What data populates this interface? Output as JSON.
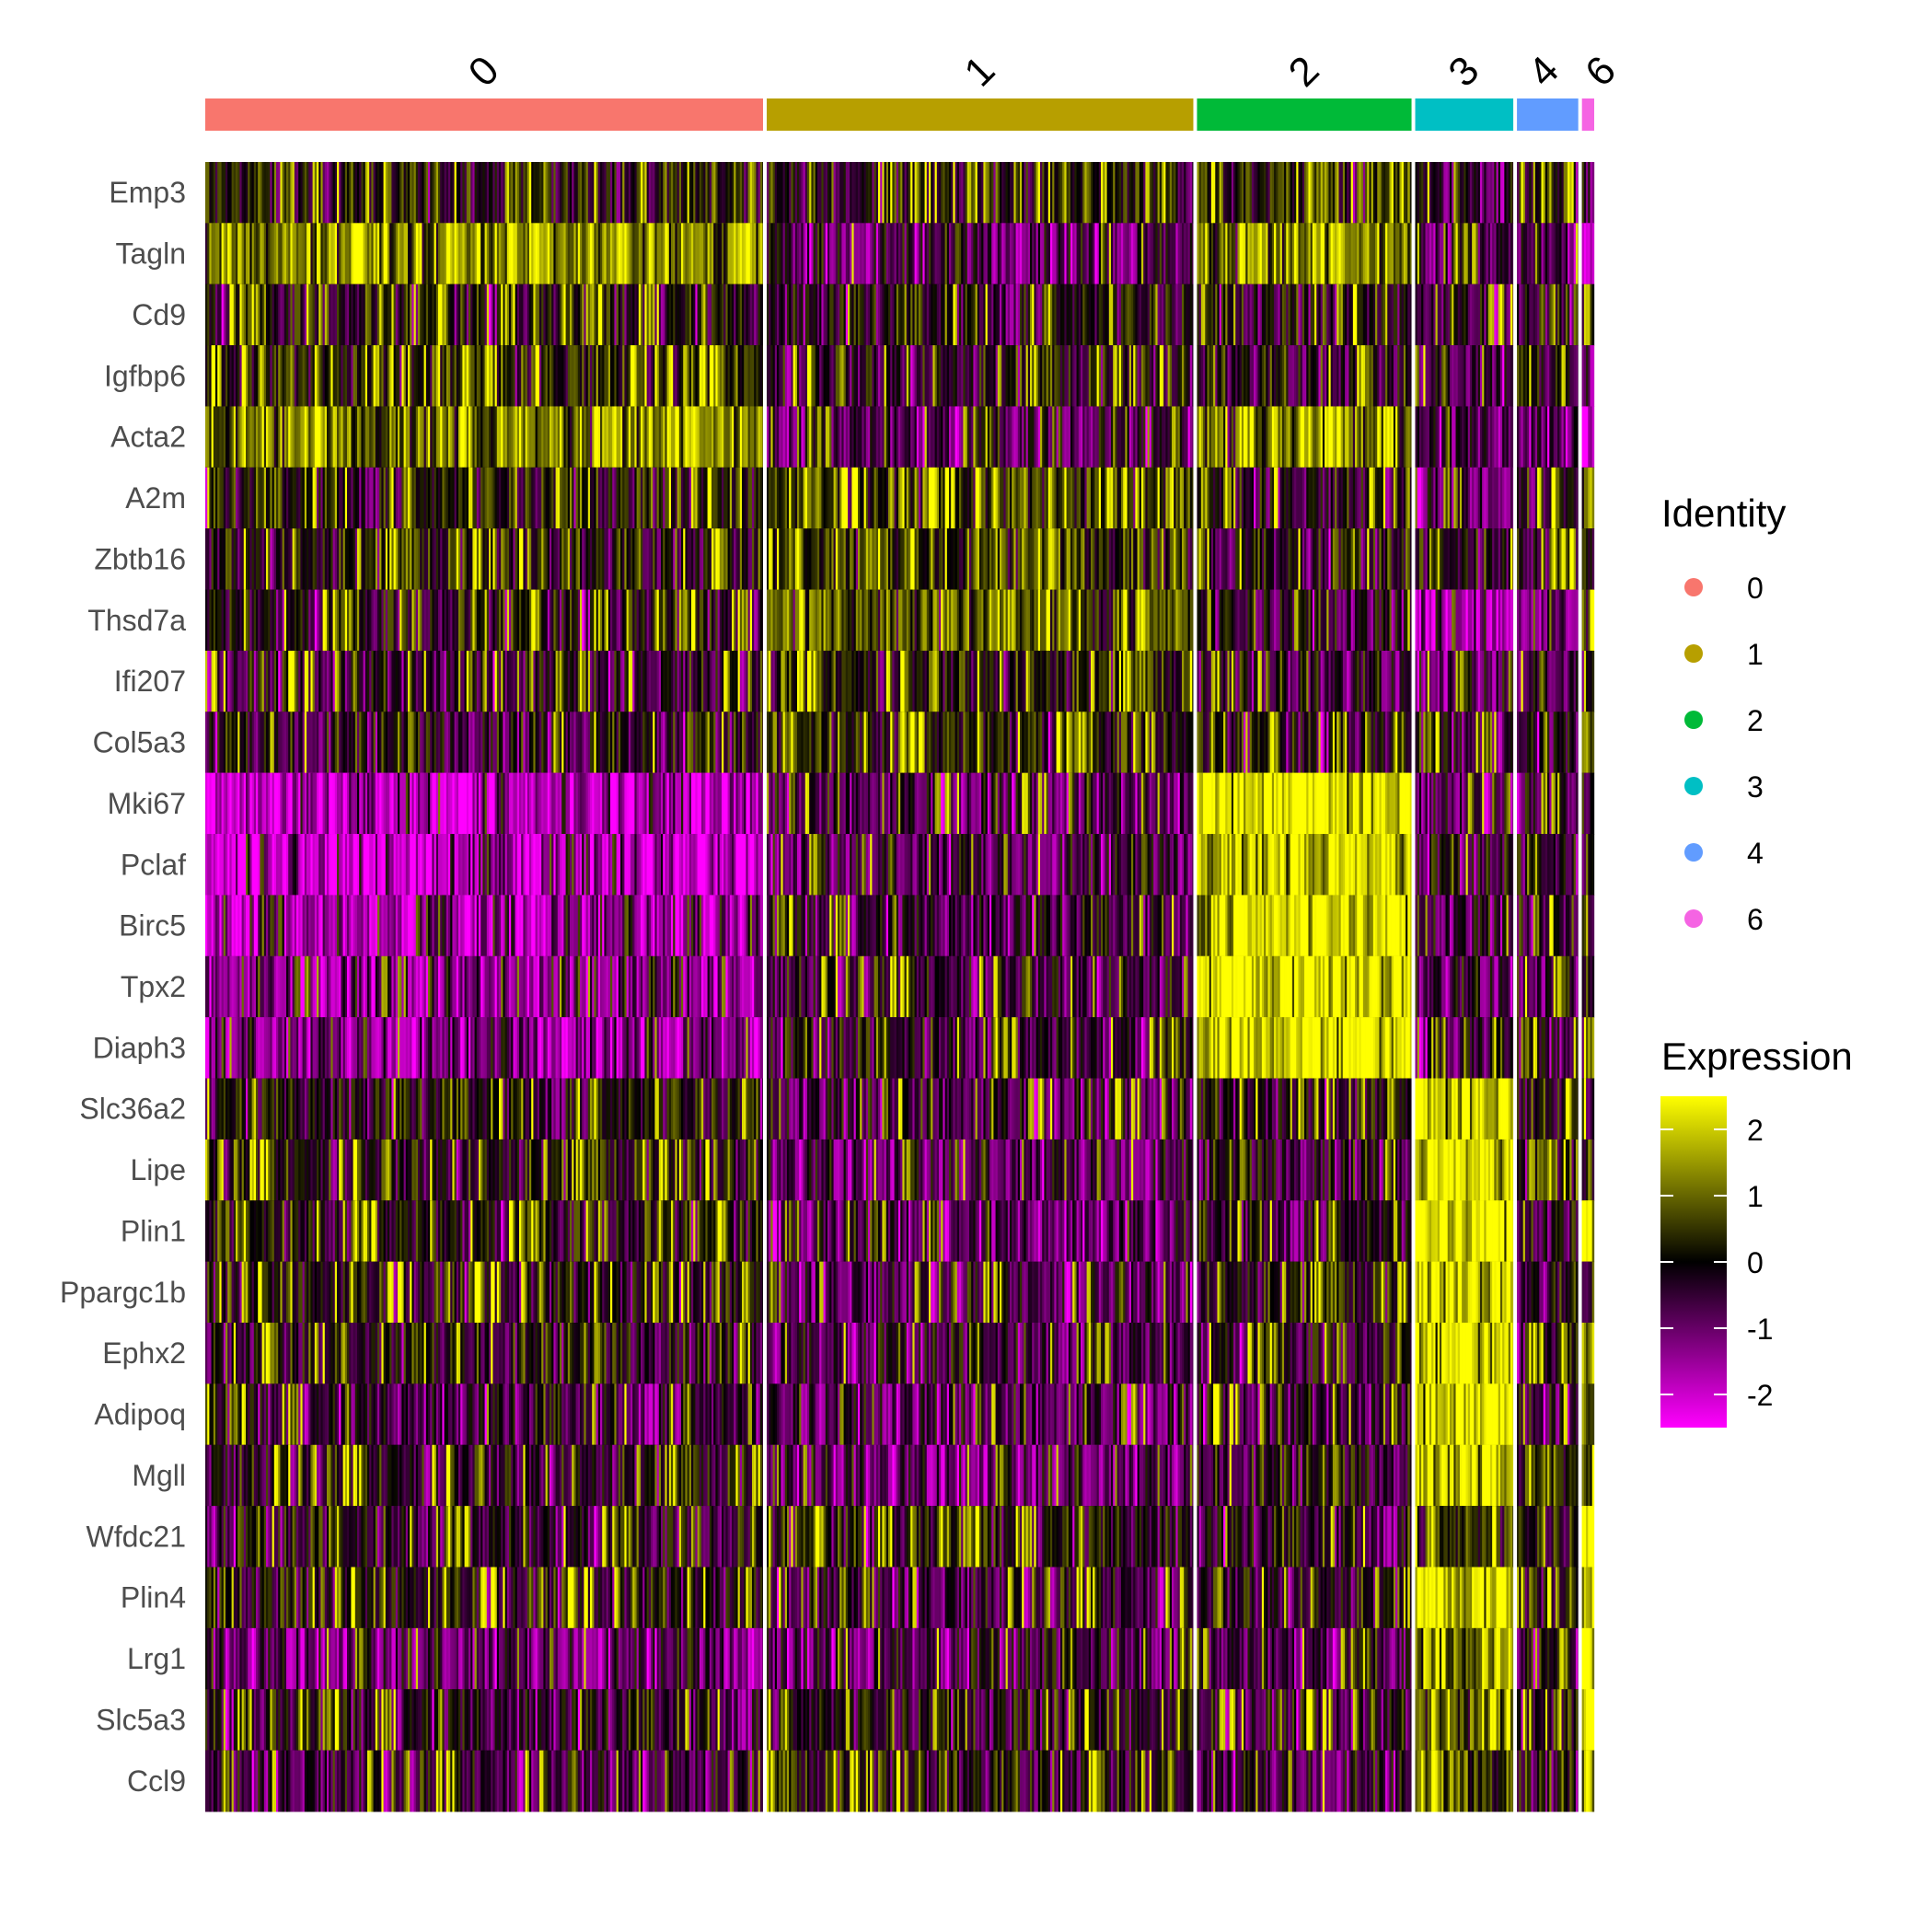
{
  "chart_data": {
    "type": "heatmap",
    "title": "",
    "xlabel": "",
    "ylabel": "",
    "genes": [
      "Emp3",
      "Tagln",
      "Cd9",
      "Igfbp6",
      "Acta2",
      "A2m",
      "Zbtb16",
      "Thsd7a",
      "Ifi207",
      "Col5a3",
      "Mki67",
      "Pclaf",
      "Birc5",
      "Tpx2",
      "Diaph3",
      "Slc36a2",
      "Lipe",
      "Plin1",
      "Ppargc1b",
      "Ephx2",
      "Adipoq",
      "Mgll",
      "Wfdc21",
      "Plin4",
      "Lrg1",
      "Slc5a3",
      "Ccl9"
    ],
    "clusters": [
      {
        "id": "0",
        "color": "#F8766D",
        "relative_cells": 455
      },
      {
        "id": "1",
        "color": "#B79F00",
        "relative_cells": 348
      },
      {
        "id": "2",
        "color": "#00BA38",
        "relative_cells": 175
      },
      {
        "id": "3",
        "color": "#00BFC4",
        "relative_cells": 80
      },
      {
        "id": "4",
        "color": "#619CFF",
        "relative_cells": 50
      },
      {
        "id": "6",
        "color": "#F564E3",
        "relative_cells": 10
      }
    ],
    "mean_expression": {
      "columns": [
        "0",
        "1",
        "2",
        "3",
        "4",
        "6"
      ],
      "rows": [
        [
          0.1,
          -0.2,
          0.2,
          -0.4,
          0.0,
          -0.6
        ],
        [
          1.2,
          -0.8,
          1.0,
          -0.8,
          -0.8,
          -2.3
        ],
        [
          -0.2,
          -0.2,
          -0.3,
          -0.6,
          -0.1,
          -1.0
        ],
        [
          0.3,
          -0.3,
          -0.2,
          -0.6,
          -0.2,
          -1.0
        ],
        [
          1.1,
          -0.9,
          0.9,
          -0.8,
          -0.8,
          -2.3
        ],
        [
          0.0,
          0.6,
          -0.3,
          -1.3,
          0.0,
          0.0
        ],
        [
          0.0,
          0.6,
          -0.3,
          -0.5,
          -0.2,
          -0.1
        ],
        [
          -0.3,
          0.8,
          -0.5,
          -1.9,
          -1.3,
          0.1
        ],
        [
          -0.4,
          0.1,
          -0.5,
          -0.8,
          -0.6,
          -0.3
        ],
        [
          -0.3,
          0.1,
          -0.4,
          -0.6,
          -0.5,
          0.8
        ],
        [
          -1.9,
          -0.8,
          2.2,
          -0.9,
          -1.0,
          -0.5
        ],
        [
          -2.0,
          -0.7,
          2.0,
          -0.7,
          -0.7,
          -0.5
        ],
        [
          -1.8,
          -0.6,
          2.0,
          -0.6,
          -0.6,
          -0.4
        ],
        [
          -1.4,
          -0.5,
          1.9,
          -0.6,
          -0.5,
          -0.3
        ],
        [
          -1.3,
          -0.6,
          2.0,
          -0.7,
          -0.7,
          -0.4
        ],
        [
          -0.1,
          -0.7,
          -0.2,
          2.0,
          -0.1,
          0.3
        ],
        [
          -0.1,
          -0.8,
          -0.3,
          2.1,
          0.3,
          -0.1
        ],
        [
          -0.2,
          -1.0,
          -0.3,
          2.2,
          -0.3,
          2.3
        ],
        [
          -0.1,
          -0.8,
          -0.1,
          1.8,
          -0.4,
          0.2
        ],
        [
          -0.1,
          -0.8,
          -0.4,
          1.8,
          0.1,
          1.5
        ],
        [
          -0.6,
          -0.9,
          -0.5,
          2.0,
          -0.5,
          1.0
        ],
        [
          -0.3,
          -1.0,
          -0.2,
          2.1,
          0.4,
          0.2
        ],
        [
          -0.5,
          -0.1,
          -0.4,
          0.3,
          0.0,
          2.4
        ],
        [
          -0.1,
          -0.6,
          -0.2,
          1.7,
          -0.1,
          2.3
        ],
        [
          -1.0,
          -0.8,
          -0.8,
          1.0,
          -0.6,
          2.3
        ],
        [
          -0.4,
          -0.3,
          -0.4,
          0.9,
          0.0,
          2.4
        ],
        [
          -0.6,
          -0.1,
          -0.6,
          0.8,
          0.0,
          0.8
        ]
      ]
    },
    "legend": {
      "identity_title": "Identity",
      "identity_items": [
        {
          "label": "0",
          "color": "#F8766D"
        },
        {
          "label": "1",
          "color": "#B79F00"
        },
        {
          "label": "2",
          "color": "#00BA38"
        },
        {
          "label": "3",
          "color": "#00BFC4"
        },
        {
          "label": "4",
          "color": "#619CFF"
        },
        {
          "label": "6",
          "color": "#F564E3"
        }
      ],
      "expression_title": "Expression",
      "expression_ticks": [
        "2",
        "1",
        "0",
        "-1",
        "-2"
      ],
      "expression_tick_values": [
        2,
        1,
        0,
        -1,
        -2
      ],
      "expression_range": [
        -2.5,
        2.5
      ],
      "colormap": {
        "low": "#FF00FF",
        "mid": "#000000",
        "high": "#FFFF00"
      },
      "placement": "right"
    }
  }
}
